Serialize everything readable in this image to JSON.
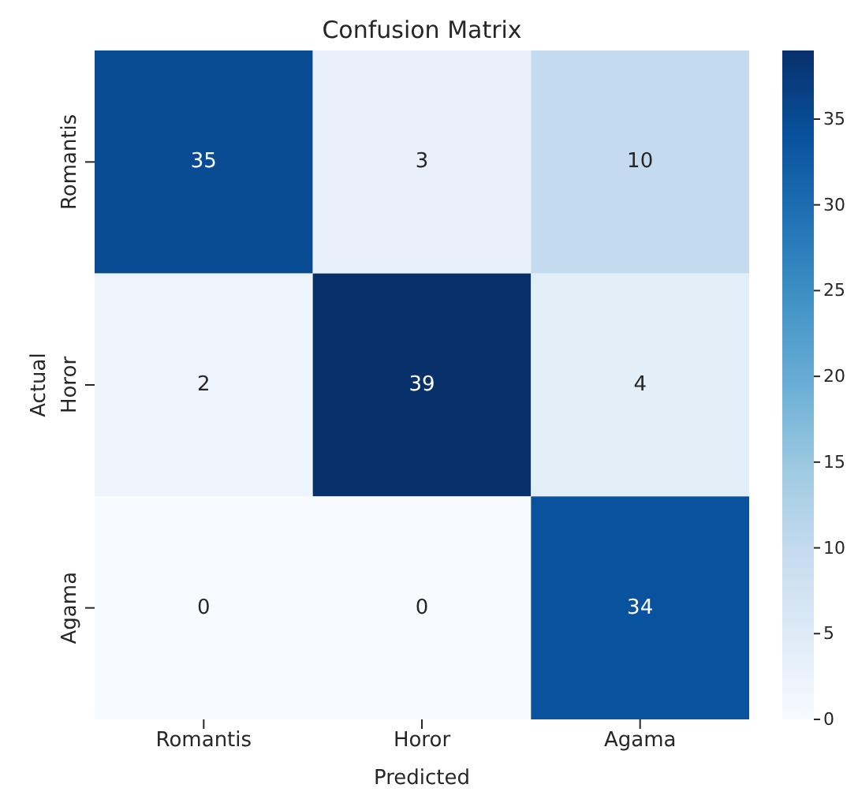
{
  "chart_data": {
    "type": "heatmap",
    "title": "Confusion Matrix",
    "xlabel": "Predicted",
    "ylabel": "Actual",
    "categories": [
      "Romantis",
      "Horor",
      "Agama"
    ],
    "y_categories": [
      "Romantis",
      "Horor",
      "Agama"
    ],
    "cells": [
      [
        35,
        3,
        10
      ],
      [
        2,
        39,
        4
      ],
      [
        0,
        0,
        34
      ]
    ],
    "data_labels": true,
    "clim": [
      0,
      39
    ],
    "cticks": [
      0,
      5,
      10,
      15,
      20,
      25,
      30,
      35
    ]
  }
}
